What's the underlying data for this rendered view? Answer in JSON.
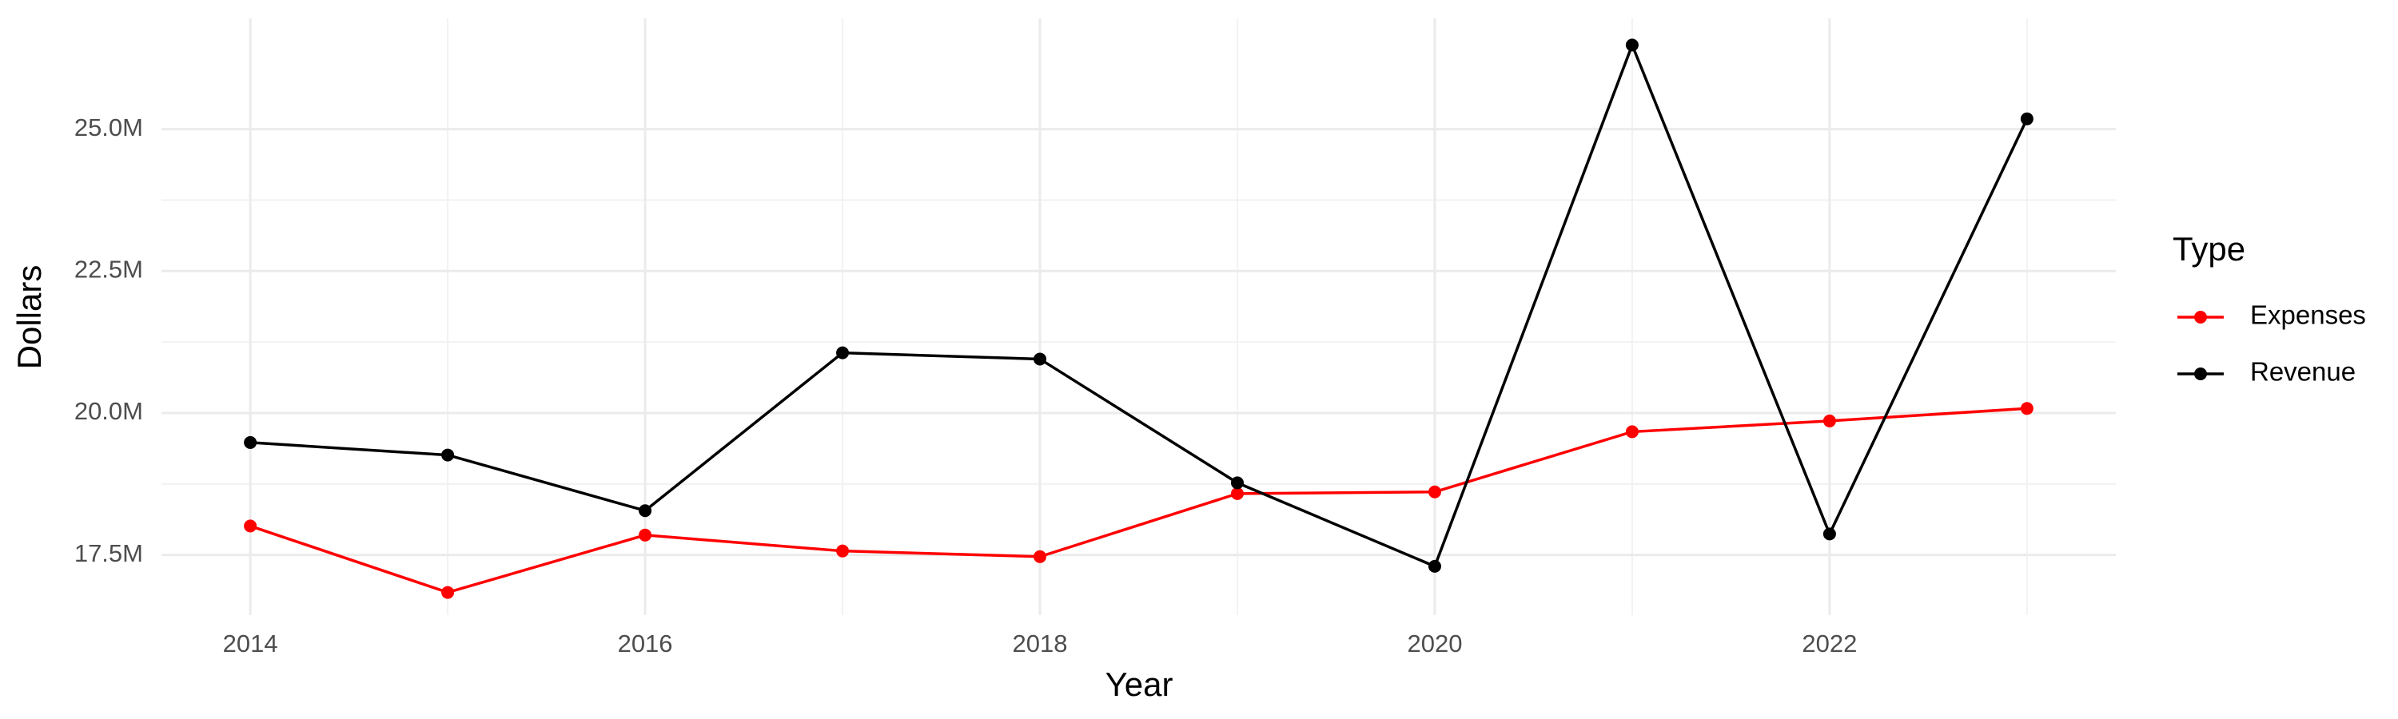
{
  "chart_data": {
    "type": "line",
    "x_label": "Year",
    "y_label": "Dollars",
    "legend_title": "Type",
    "x": [
      2014,
      2015,
      2016,
      2017,
      2018,
      2019,
      2020,
      2021,
      2022,
      2023
    ],
    "series": [
      {
        "name": "Expenses",
        "color": "#ff0000",
        "values": [
          18010000,
          16840000,
          17850000,
          17570000,
          17470000,
          18580000,
          18610000,
          19670000,
          19860000,
          20080000
        ]
      },
      {
        "name": "Revenue",
        "color": "#000000",
        "values": [
          19480000,
          19260000,
          18280000,
          21060000,
          20950000,
          18770000,
          17300000,
          26480000,
          17870000,
          25180000
        ]
      }
    ],
    "xlim": [
      2013.55,
      2023.45
    ],
    "xticks": [
      2014,
      2016,
      2018,
      2020,
      2022
    ],
    "ylim": [
      16440000,
      26950000
    ],
    "yticks": [
      {
        "value": 17500000,
        "label": "17.5M"
      },
      {
        "value": 20000000,
        "label": "20.0M"
      },
      {
        "value": 22500000,
        "label": "22.5M"
      },
      {
        "value": 25000000,
        "label": "25.0M"
      }
    ],
    "grid": true,
    "legend": "right"
  }
}
